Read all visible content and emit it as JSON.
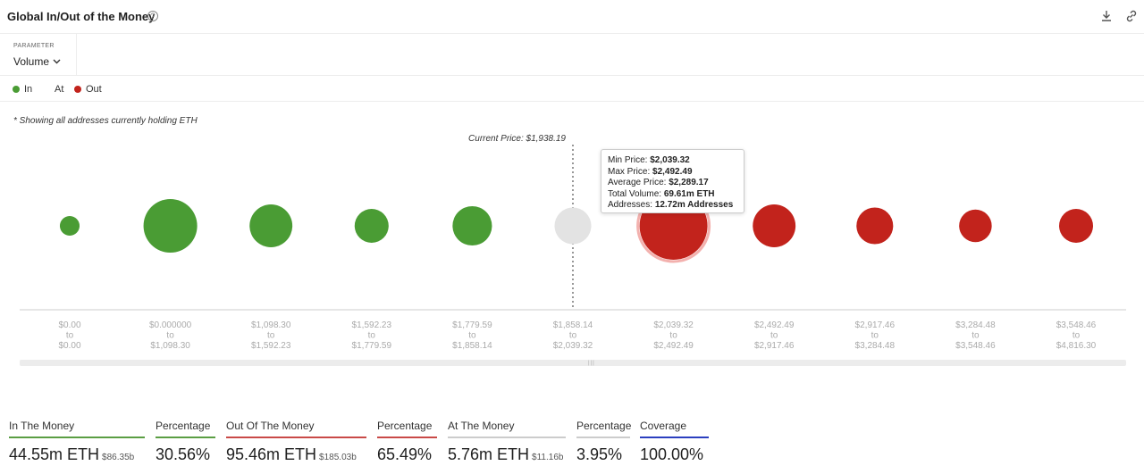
{
  "header": {
    "title": "Global In/Out of the Money",
    "help_glyph": "?"
  },
  "parameter": {
    "label": "PARAMETER",
    "value": "Volume"
  },
  "legend": {
    "in": "In",
    "at": "At",
    "out": "Out"
  },
  "note": "* Showing all addresses currently holding ETH",
  "colors": {
    "in": "#4a9c34",
    "at": "#e3e3e3",
    "out": "#c2231c",
    "in_underline": "#5a9e43",
    "out_underline": "#c94a47",
    "at_underline": "#cccccc",
    "coverage_underline": "#2b3fbf"
  },
  "current_price_label": "Current Price: $1,938.19",
  "tooltip": {
    "min_label": "Min Price:",
    "min_value": "$2,039.32",
    "max_label": "Max Price:",
    "max_value": "$2,492.49",
    "avg_label": "Average Price:",
    "avg_value": "$2,289.17",
    "vol_label": "Total Volume:",
    "vol_value": "69.61m ETH",
    "addr_label": "Addresses:",
    "addr_value": "12.72m Addresses"
  },
  "chart_data": {
    "type": "scatter",
    "current_price_marker_after_index": 5,
    "bubbles": [
      {
        "from": "$0.00",
        "to": "$0.00",
        "status": "in",
        "size": 0.29
      },
      {
        "from": "$0.000000",
        "to": "$1,098.30",
        "status": "in",
        "size": 0.79
      },
      {
        "from": "$1,098.30",
        "to": "$1,592.23",
        "status": "in",
        "size": 0.63
      },
      {
        "from": "$1,592.23",
        "to": "$1,779.59",
        "status": "in",
        "size": 0.5
      },
      {
        "from": "$1,779.59",
        "to": "$1,858.14",
        "status": "in",
        "size": 0.58
      },
      {
        "from": "$1,858.14",
        "to": "$2,039.32",
        "status": "at",
        "size": 0.54
      },
      {
        "from": "$2,039.32",
        "to": "$2,492.49",
        "status": "out",
        "size": 1.0,
        "highlighted": true
      },
      {
        "from": "$2,492.49",
        "to": "$2,917.46",
        "status": "out",
        "size": 0.63
      },
      {
        "from": "$2,917.46",
        "to": "$3,284.48",
        "status": "out",
        "size": 0.54
      },
      {
        "from": "$3,284.48",
        "to": "$3,548.46",
        "status": "out",
        "size": 0.48
      },
      {
        "from": "$3,548.46",
        "to": "$4,816.30",
        "status": "out",
        "size": 0.5
      }
    ],
    "to_word": "to"
  },
  "stats": [
    {
      "label": "In The Money",
      "value": "44.55m ETH",
      "sub": "$86.35b",
      "color_key": "in_underline"
    },
    {
      "label": "Percentage",
      "value": "30.56%",
      "sub": "",
      "color_key": "in_underline"
    },
    {
      "label": "Out Of The Money",
      "value": "95.46m ETH",
      "sub": "$185.03b",
      "color_key": "out_underline"
    },
    {
      "label": "Percentage",
      "value": "65.49%",
      "sub": "",
      "color_key": "out_underline"
    },
    {
      "label": "At The Money",
      "value": "5.76m ETH",
      "sub": "$11.16b",
      "color_key": "at_underline"
    },
    {
      "label": "Percentage",
      "value": "3.95%",
      "sub": "",
      "color_key": "at_underline"
    },
    {
      "label": "Coverage",
      "value": "100.00%",
      "sub": "",
      "color_key": "coverage_underline"
    }
  ]
}
